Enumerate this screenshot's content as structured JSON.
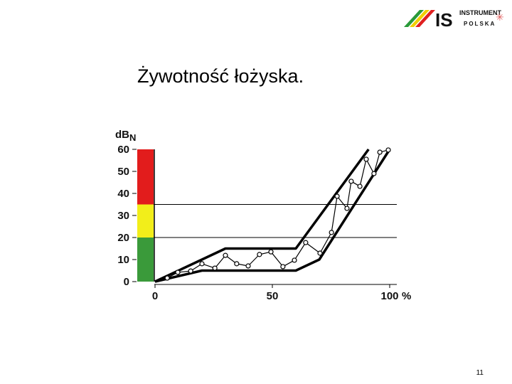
{
  "logo": {
    "line1": "INSTRUMENT",
    "line2": "POLSKA"
  },
  "chart_data": {
    "type": "line",
    "title": "Żywotność łożyska.",
    "y_label": "dB",
    "y_label_subscript": "N",
    "x_unit": "%",
    "xlim": [
      0,
      100
    ],
    "ylim": [
      0,
      60
    ],
    "xticks": [
      0,
      50,
      100
    ],
    "yticks": [
      0,
      10,
      20,
      30,
      40,
      50,
      60
    ],
    "bands": [
      {
        "from": 0,
        "to": 20,
        "color": "#3a9a3a"
      },
      {
        "from": 20,
        "to": 35,
        "color": "#f2ee1a"
      },
      {
        "from": 35,
        "to": 60,
        "color": "#e21c1c"
      }
    ],
    "series": [
      {
        "color": "#000000",
        "markers": false,
        "x": [
          0,
          30,
          60,
          91
        ],
        "values": [
          0,
          15,
          15,
          60
        ]
      },
      {
        "color": "#000000",
        "markers": false,
        "x": [
          0,
          20,
          60,
          70,
          100
        ],
        "values": [
          0,
          5,
          5,
          10,
          60
        ]
      },
      {
        "color": "#000000",
        "markers": true,
        "x": [
          5.2,
          9.7,
          15.2,
          20,
          25.5,
          30,
          34.8,
          39.7,
          44.5,
          49.4,
          54.5,
          59.4,
          64.2,
          70.3,
          75.2,
          77.6,
          81.8,
          83.6,
          87.3,
          90,
          93.3,
          95.8,
          99.4
        ],
        "values": [
          1.6,
          4.2,
          4.8,
          8.1,
          6.1,
          11.9,
          8.1,
          7.1,
          12.3,
          13.5,
          6.8,
          9.7,
          17.7,
          12.9,
          22.3,
          38.7,
          33.2,
          45.5,
          43.2,
          55.5,
          49,
          58.7,
          59.7
        ]
      }
    ]
  },
  "page_number": "11"
}
